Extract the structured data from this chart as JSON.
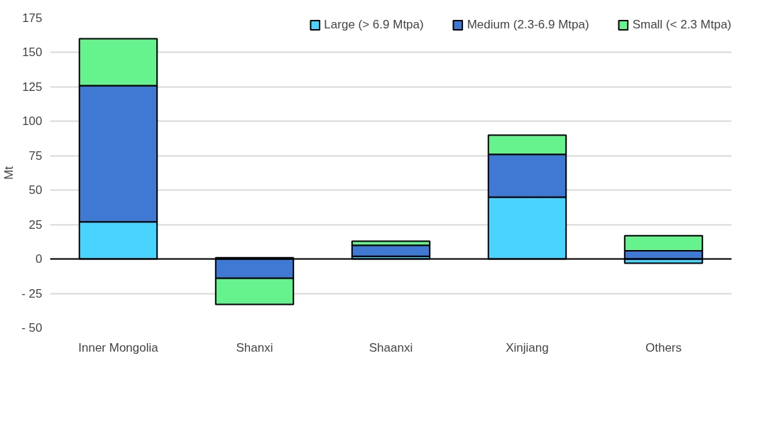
{
  "chart_data": {
    "type": "bar",
    "stacked": true,
    "ylabel": "Mt",
    "categories": [
      "Inner Mongolia",
      "Shanxi",
      "Shaanxi",
      "Xinjiang",
      "Others"
    ],
    "series": [
      {
        "name": "Large (> 6.9 Mtpa)",
        "color": "#48d4fe",
        "values": [
          27,
          1,
          2,
          45,
          -3
        ]
      },
      {
        "name": "Medium (2.3-6.9 Mtpa)",
        "color": "#3f79d4",
        "values": [
          99,
          -14,
          8,
          31,
          6
        ]
      },
      {
        "name": "Small (< 2.3 Mtpa)",
        "color": "#66f28d",
        "values": [
          34,
          -19,
          3,
          14,
          11
        ]
      }
    ],
    "ylim": [
      -50,
      175
    ],
    "yticks": [
      {
        "value": -50,
        "label": "- 50"
      },
      {
        "value": -25,
        "label": "- 25"
      },
      0,
      25,
      50,
      75,
      100,
      125,
      150,
      175
    ],
    "grid": "y",
    "legend": "top right"
  }
}
